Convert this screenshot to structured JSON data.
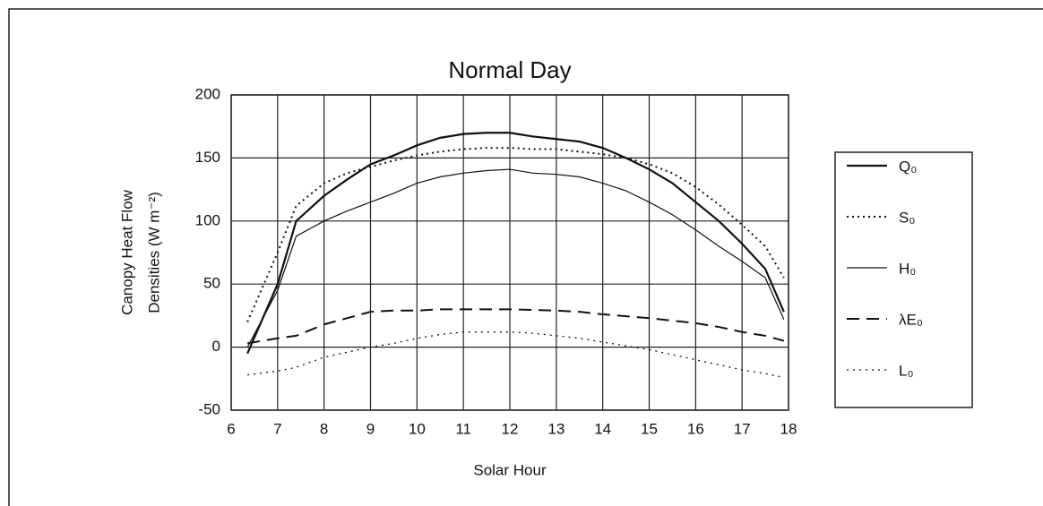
{
  "chart_data": {
    "type": "line",
    "title": "Normal Day",
    "xlabel": "Solar Hour",
    "ylabel": [
      "Canopy Heat Flow",
      "Densities (W m⁻²)"
    ],
    "x": [
      6.35,
      7,
      7.4,
      8,
      8.5,
      9,
      9.5,
      10,
      10.5,
      11,
      11.5,
      12,
      12.5,
      13,
      13.5,
      14,
      14.5,
      15,
      15.5,
      16,
      16.5,
      17,
      17.5,
      17.9
    ],
    "series": [
      {
        "name": "Q₀",
        "color": "#111",
        "width": 2.2,
        "dash": "none",
        "values": [
          -5,
          50,
          100,
          120,
          133,
          145,
          152,
          160,
          166,
          169,
          170,
          170,
          167,
          165,
          163,
          158,
          150,
          141,
          130,
          115,
          100,
          82,
          62,
          28
        ]
      },
      {
        "name": "S₀",
        "color": "#111",
        "width": 2,
        "dash": "2 4",
        "values": [
          20,
          75,
          112,
          130,
          138,
          143,
          148,
          152,
          155,
          157,
          158,
          158,
          157,
          157,
          155,
          153,
          150,
          145,
          138,
          127,
          113,
          97,
          80,
          55
        ]
      },
      {
        "name": "H₀",
        "color": "#111",
        "width": 1.2,
        "dash": "none",
        "values": [
          0,
          45,
          88,
          100,
          108,
          115,
          122,
          130,
          135,
          138,
          140,
          141,
          138,
          137,
          135,
          130,
          124,
          115,
          105,
          93,
          80,
          68,
          55,
          22
        ]
      },
      {
        "name": "λE₀",
        "color": "#111",
        "width": 2,
        "dash": "14 8",
        "values": [
          3,
          7,
          9,
          18,
          23,
          28,
          29,
          29,
          30,
          30,
          30,
          30,
          29.5,
          29,
          28,
          26,
          24.5,
          23,
          21,
          19,
          16,
          12,
          9,
          5
        ]
      },
      {
        "name": "L₀",
        "color": "#111",
        "width": 1.3,
        "dash": "2 5",
        "values": [
          -22,
          -19,
          -16,
          -8,
          -4,
          0,
          3,
          7,
          10,
          12,
          12,
          12,
          11,
          9,
          7,
          4,
          1,
          -2,
          -6,
          -10,
          -14,
          -18,
          -21,
          -24
        ]
      }
    ],
    "xlim": [
      6,
      18
    ],
    "xticks": [
      6,
      7,
      8,
      9,
      10,
      11,
      12,
      13,
      14,
      15,
      16,
      17,
      18
    ],
    "ylim": [
      -50,
      200
    ],
    "yticks": [
      -50,
      0,
      50,
      100,
      150,
      200
    ],
    "grid": true,
    "legend": "right"
  }
}
